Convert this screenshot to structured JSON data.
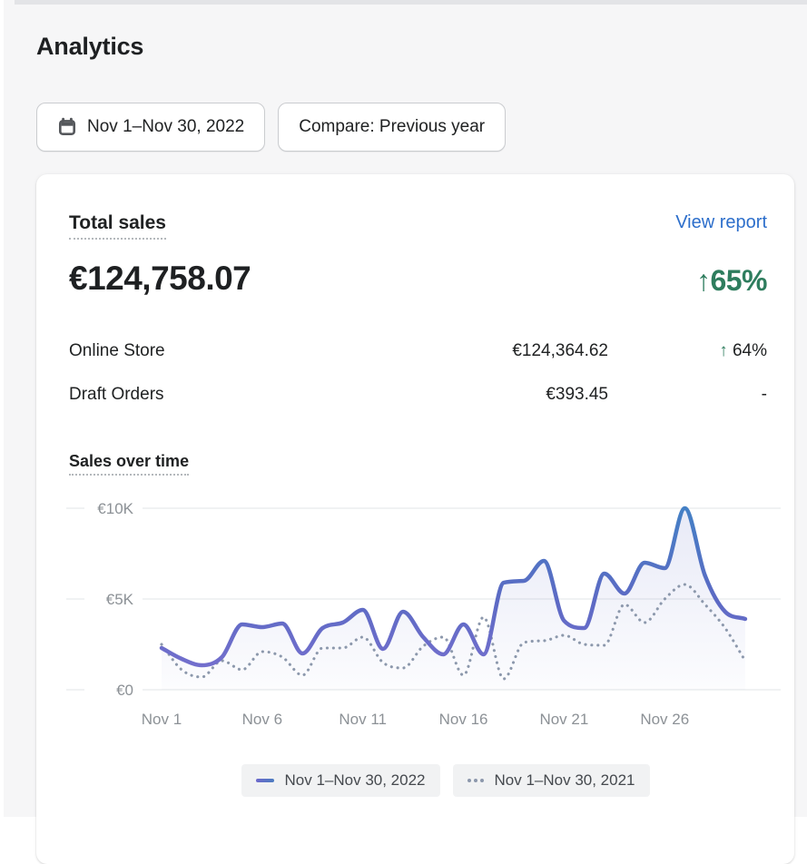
{
  "page": {
    "title": "Analytics"
  },
  "toolbar": {
    "date_range_label": "Nov 1–Nov 30, 2022",
    "compare_label": "Compare: Previous year",
    "calendar_icon": "calendar-icon"
  },
  "card": {
    "title": "Total sales",
    "view_report_label": "View report",
    "total_value": "€124,758.07",
    "total_change_arrow": "↑",
    "total_change": "65%",
    "rows": [
      {
        "label": "Online Store",
        "value": "€124,364.62",
        "arrow": "↑",
        "change": "64%"
      },
      {
        "label": "Draft Orders",
        "value": "€393.45",
        "arrow": "",
        "change": "-"
      }
    ],
    "chart_title": "Sales over time"
  },
  "chart_data": {
    "type": "line",
    "title": "Sales over time",
    "x": [
      1,
      2,
      3,
      4,
      5,
      6,
      7,
      8,
      9,
      10,
      11,
      12,
      13,
      14,
      15,
      16,
      17,
      18,
      19,
      20,
      21,
      22,
      23,
      24,
      25,
      26,
      27,
      28,
      29,
      30
    ],
    "x_tick_days": [
      1,
      6,
      11,
      16,
      21,
      26
    ],
    "x_tick_labels": [
      "Nov 1",
      "Nov 6",
      "Nov 11",
      "Nov 16",
      "Nov 21",
      "Nov 26"
    ],
    "y_ticks": [
      {
        "value": 0,
        "label": "€0"
      },
      {
        "value": 5000,
        "label": "€5K"
      },
      {
        "value": 10000,
        "label": "€10K"
      }
    ],
    "ylim": [
      0,
      10000
    ],
    "grid": true,
    "legend_position": "bottom",
    "series": [
      {
        "name": "Nov 1–Nov 30, 2022",
        "style": "solid",
        "color": "#5c6ac4",
        "values": [
          2300,
          1700,
          1350,
          1800,
          3600,
          3450,
          3650,
          2000,
          3400,
          3700,
          4400,
          2250,
          4300,
          2900,
          1950,
          3600,
          1950,
          5900,
          6000,
          7100,
          3800,
          3400,
          6400,
          5300,
          7000,
          6700,
          10000,
          6300,
          4300,
          3900
        ]
      },
      {
        "name": "Nov 1–Nov 30, 2021",
        "style": "dotted",
        "color": "#8c98ac",
        "values": [
          2500,
          1100,
          700,
          1600,
          1100,
          2100,
          1800,
          800,
          2300,
          2300,
          2900,
          1500,
          1200,
          2400,
          2900,
          800,
          4000,
          600,
          2600,
          2700,
          3000,
          2500,
          2450,
          4700,
          3700,
          5000,
          5800,
          4700,
          3400,
          1600
        ]
      }
    ]
  },
  "colors": {
    "page_bg": "#f6f6f7",
    "card_bg": "#ffffff",
    "link_blue": "#2c6ecb",
    "success_green": "#2e7d5e",
    "line_2022_top": "#4480c5",
    "line_2022_bottom": "#7a70d0",
    "line_2021": "#8c98ac",
    "gridline": "#ebedef",
    "axis_label": "#8c9196"
  }
}
